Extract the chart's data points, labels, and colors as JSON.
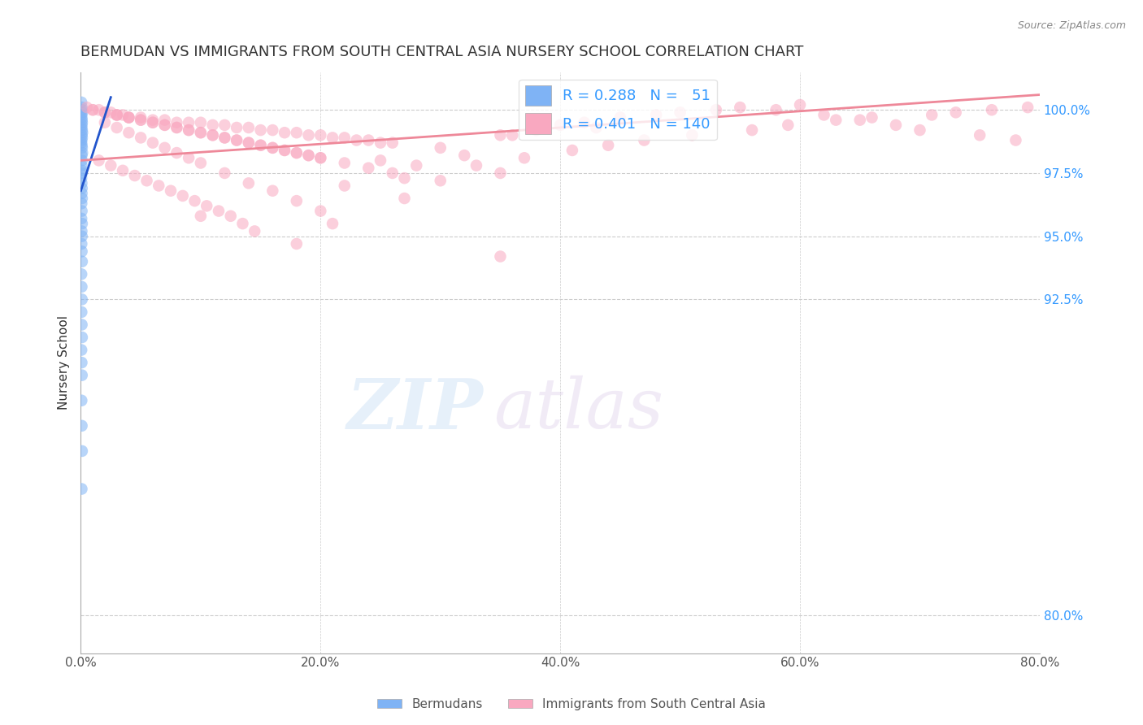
{
  "title": "BERMUDAN VS IMMIGRANTS FROM SOUTH CENTRAL ASIA NURSERY SCHOOL CORRELATION CHART",
  "source": "Source: ZipAtlas.com",
  "ylabel": "Nursery School",
  "x_tick_labels": [
    "0.0%",
    "20.0%",
    "40.0%",
    "60.0%",
    "80.0%"
  ],
  "x_tick_vals": [
    0.0,
    20.0,
    40.0,
    60.0,
    80.0
  ],
  "y_tick_labels_right": [
    "100.0%",
    "97.5%",
    "95.0%",
    "92.5%",
    "80.0%"
  ],
  "y_tick_vals": [
    100.0,
    97.5,
    95.0,
    92.5,
    80.0
  ],
  "xlim": [
    0.0,
    80.0
  ],
  "ylim": [
    78.5,
    101.5
  ],
  "blue_scatter_x": [
    0.05,
    0.08,
    0.1,
    0.12,
    0.05,
    0.07,
    0.09,
    0.1,
    0.08,
    0.06,
    0.1,
    0.12,
    0.08,
    0.1,
    0.06,
    0.05,
    0.08,
    0.1,
    0.12,
    0.07,
    0.09,
    0.06,
    0.08,
    0.1,
    0.05,
    0.07,
    0.09,
    0.08,
    0.1,
    0.06,
    0.08,
    0.05,
    0.1,
    0.07,
    0.09,
    0.06,
    0.08,
    0.1,
    0.05,
    0.07,
    0.09,
    0.06,
    0.08,
    0.1,
    0.05,
    0.07,
    0.09,
    0.06,
    0.08,
    0.1,
    0.07
  ],
  "blue_scatter_y": [
    100.3,
    100.1,
    100.0,
    99.9,
    99.8,
    99.7,
    99.6,
    99.5,
    99.4,
    99.3,
    99.2,
    99.1,
    99.0,
    98.9,
    98.8,
    98.7,
    98.6,
    98.5,
    98.3,
    98.2,
    98.0,
    97.8,
    97.6,
    97.5,
    97.3,
    97.1,
    96.9,
    96.7,
    96.5,
    96.3,
    96.0,
    95.7,
    95.5,
    95.2,
    95.0,
    94.7,
    94.4,
    94.0,
    93.5,
    93.0,
    92.5,
    92.0,
    91.5,
    91.0,
    90.5,
    90.0,
    89.5,
    88.5,
    87.5,
    86.5,
    85.0
  ],
  "pink_scatter_x": [
    0.5,
    1.0,
    1.5,
    2.0,
    2.5,
    3.0,
    3.5,
    4.0,
    5.0,
    6.0,
    7.0,
    8.0,
    9.0,
    10.0,
    11.0,
    12.0,
    13.0,
    14.0,
    15.0,
    16.0,
    17.0,
    18.0,
    19.0,
    20.0,
    21.0,
    22.0,
    23.0,
    24.0,
    25.0,
    26.0,
    3.0,
    4.0,
    5.0,
    6.0,
    7.0,
    8.0,
    9.0,
    10.0,
    11.0,
    12.0,
    13.0,
    14.0,
    15.0,
    16.0,
    17.0,
    18.0,
    19.0,
    20.0,
    22.0,
    24.0,
    1.0,
    2.0,
    3.0,
    4.0,
    5.0,
    6.0,
    7.0,
    8.0,
    9.0,
    10.0,
    11.0,
    12.0,
    13.0,
    14.0,
    15.0,
    16.0,
    17.0,
    18.0,
    19.0,
    20.0,
    2.0,
    3.0,
    4.0,
    5.0,
    6.0,
    7.0,
    8.0,
    9.0,
    10.0,
    12.0,
    14.0,
    16.0,
    18.0,
    20.0,
    25.0,
    30.0,
    35.0,
    38.0,
    40.0,
    28.0,
    32.0,
    26.0,
    36.0,
    42.0,
    45.0,
    48.0,
    43.0,
    50.0,
    53.0,
    55.0,
    58.0,
    60.0,
    62.0,
    65.0,
    68.0,
    70.0,
    75.0,
    78.0,
    30.0,
    35.0,
    22.0,
    27.0,
    33.0,
    37.0,
    41.0,
    44.0,
    47.0,
    51.0,
    56.0,
    59.0,
    63.0,
    66.0,
    71.0,
    73.0,
    76.0,
    79.0,
    1.5,
    2.5,
    3.5,
    4.5,
    5.5,
    6.5,
    7.5,
    8.5,
    9.5,
    10.5,
    11.5,
    12.5,
    13.5,
    14.5
  ],
  "pink_scatter_y": [
    100.1,
    100.0,
    100.0,
    99.9,
    99.9,
    99.8,
    99.8,
    99.7,
    99.7,
    99.6,
    99.6,
    99.5,
    99.5,
    99.5,
    99.4,
    99.4,
    99.3,
    99.3,
    99.2,
    99.2,
    99.1,
    99.1,
    99.0,
    99.0,
    98.9,
    98.9,
    98.8,
    98.8,
    98.7,
    98.7,
    99.8,
    99.7,
    99.6,
    99.5,
    99.4,
    99.3,
    99.2,
    99.1,
    99.0,
    98.9,
    98.8,
    98.7,
    98.6,
    98.5,
    98.4,
    98.3,
    98.2,
    98.1,
    97.9,
    97.7,
    100.0,
    99.9,
    99.8,
    99.7,
    99.6,
    99.5,
    99.4,
    99.3,
    99.2,
    99.1,
    99.0,
    98.9,
    98.8,
    98.7,
    98.6,
    98.5,
    98.4,
    98.3,
    98.2,
    98.1,
    99.5,
    99.3,
    99.1,
    98.9,
    98.7,
    98.5,
    98.3,
    98.1,
    97.9,
    97.5,
    97.1,
    96.8,
    96.4,
    96.0,
    98.0,
    98.5,
    99.0,
    99.2,
    99.4,
    97.8,
    98.2,
    97.5,
    99.0,
    99.5,
    99.7,
    99.8,
    99.3,
    99.9,
    100.0,
    100.1,
    100.0,
    100.2,
    99.8,
    99.6,
    99.4,
    99.2,
    99.0,
    98.8,
    97.2,
    97.5,
    97.0,
    97.3,
    97.8,
    98.1,
    98.4,
    98.6,
    98.8,
    99.0,
    99.2,
    99.4,
    99.6,
    99.7,
    99.8,
    99.9,
    100.0,
    100.1,
    98.0,
    97.8,
    97.6,
    97.4,
    97.2,
    97.0,
    96.8,
    96.6,
    96.4,
    96.2,
    96.0,
    95.8,
    95.5,
    95.2
  ],
  "pink_outlier_x": [
    27.0,
    10.0,
    21.0,
    18.0,
    35.0
  ],
  "pink_outlier_y": [
    96.5,
    95.8,
    95.5,
    94.7,
    94.2
  ],
  "blue_line_x": [
    0.0,
    2.5
  ],
  "blue_line_y": [
    96.8,
    100.5
  ],
  "pink_line_x": [
    0.0,
    80.0
  ],
  "pink_line_y": [
    98.0,
    100.6
  ],
  "legend_text_color": "#3399ff",
  "blue_dot_color": "#7fb3f5",
  "pink_dot_color": "#f9a8c0",
  "blue_line_color": "#2255cc",
  "pink_line_color": "#ee8899",
  "watermark_zip": "ZIP",
  "watermark_atlas": "atlas",
  "background_color": "#ffffff",
  "grid_color": "#cccccc",
  "title_fontsize": 13,
  "axis_label_fontsize": 11,
  "tick_fontsize": 11,
  "legend_fontsize": 13,
  "dot_size": 110
}
